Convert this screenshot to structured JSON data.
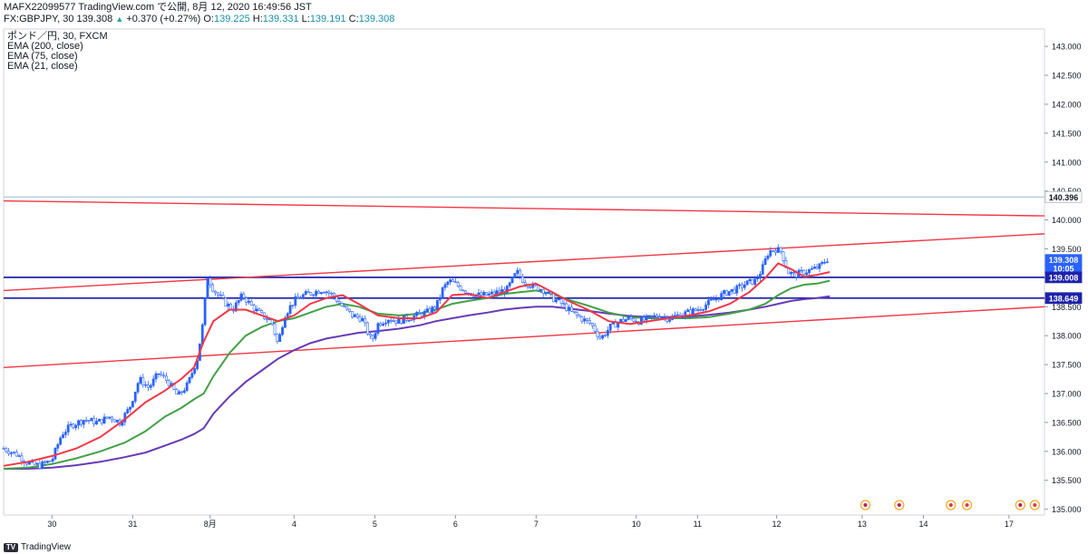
{
  "header": {
    "publish_line": "MAFX22099577 TradingView.com で公開, 8月 12, 2020 16:49:56 JST",
    "symbol": "FX:GBPJPY, 30",
    "last": "139.308",
    "change": "+0.370 (+0.27%)",
    "o_label": "O:",
    "o_val": "139.225",
    "h_label": "H:",
    "h_val": "139.331",
    "l_label": "L:",
    "l_val": "139.191",
    "c_label": "C:",
    "c_val": "139.308"
  },
  "legend": {
    "series_title": "ポンド／円, 30, FXCM",
    "ema200": "EMA (200, close)",
    "ema75": "EMA (75, close)",
    "ema21": "EMA (21, close)"
  },
  "footer": {
    "logo_text": "TV",
    "brand": "TradingView"
  },
  "colors": {
    "up_candle": "#2962ff",
    "down_candle": "#2962ff",
    "ema21": "#f23645",
    "ema75": "#43a047",
    "ema200": "#673ab7",
    "trend_line": "#f23645",
    "hline": "#1e22aa",
    "hline_light": "#90bfd8"
  },
  "chart_data": {
    "type": "candlestick",
    "y_axis": {
      "min": 134.9,
      "max": 143.3,
      "ticks": [
        "143.000",
        "142.500",
        "142.000",
        "141.500",
        "141.000",
        "140.500",
        "140.000",
        "139.500",
        "139.000",
        "138.500",
        "138.000",
        "137.500",
        "137.000",
        "136.500",
        "136.000",
        "135.500",
        "135.000"
      ]
    },
    "x_axis": {
      "labels": [
        {
          "t": "30",
          "x": 30
        },
        {
          "t": "31",
          "x": 80
        },
        {
          "t": "8月",
          "x": 128
        },
        {
          "t": "4",
          "x": 180
        },
        {
          "t": "5",
          "x": 230
        },
        {
          "t": "6",
          "x": 280
        },
        {
          "t": "7",
          "x": 330
        },
        {
          "t": "10",
          "x": 392
        },
        {
          "t": "11",
          "x": 430
        },
        {
          "t": "12",
          "x": 479
        },
        {
          "t": "13",
          "x": 532
        },
        {
          "t": "14",
          "x": 570
        },
        {
          "t": "17",
          "x": 623
        }
      ],
      "range": [
        0,
        645
      ]
    },
    "price_tags": [
      {
        "text": "140.396",
        "value": 140.396,
        "style": "outline"
      },
      {
        "text": "139.308",
        "value": 139.308,
        "style": "blue"
      },
      {
        "text": "10:05",
        "value": 139.16,
        "style": "blue"
      },
      {
        "text": "139.008",
        "value": 139.008,
        "style": "navy"
      },
      {
        "text": "138.649",
        "value": 138.649,
        "style": "navy"
      }
    ],
    "horizontal_lines": [
      {
        "value": 140.396,
        "style": "light"
      },
      {
        "value": 139.008,
        "style": "heavy"
      },
      {
        "value": 138.649,
        "style": "heavy"
      }
    ],
    "trend_lines": [
      {
        "x1": 0,
        "y1": 140.33,
        "x2": 645,
        "y2": 140.07
      },
      {
        "x1": 0,
        "y1": 138.78,
        "x2": 645,
        "y2": 139.76
      },
      {
        "x1": 0,
        "y1": 137.45,
        "x2": 645,
        "y2": 138.5
      }
    ],
    "ema21": [
      [
        0,
        135.75
      ],
      [
        15,
        135.82
      ],
      [
        30,
        135.92
      ],
      [
        45,
        136.05
      ],
      [
        60,
        136.25
      ],
      [
        75,
        136.55
      ],
      [
        88,
        136.85
      ],
      [
        100,
        137.05
      ],
      [
        110,
        137.25
      ],
      [
        118,
        137.45
      ],
      [
        124,
        137.9
      ],
      [
        130,
        138.25
      ],
      [
        140,
        138.45
      ],
      [
        150,
        138.45
      ],
      [
        160,
        138.35
      ],
      [
        170,
        138.25
      ],
      [
        180,
        138.35
      ],
      [
        190,
        138.55
      ],
      [
        200,
        138.65
      ],
      [
        210,
        138.7
      ],
      [
        220,
        138.55
      ],
      [
        232,
        138.35
      ],
      [
        245,
        138.3
      ],
      [
        258,
        138.3
      ],
      [
        268,
        138.4
      ],
      [
        278,
        138.7
      ],
      [
        288,
        138.72
      ],
      [
        300,
        138.65
      ],
      [
        310,
        138.75
      ],
      [
        320,
        138.85
      ],
      [
        330,
        138.9
      ],
      [
        340,
        138.75
      ],
      [
        350,
        138.6
      ],
      [
        362,
        138.45
      ],
      [
        375,
        138.25
      ],
      [
        388,
        138.2
      ],
      [
        400,
        138.25
      ],
      [
        412,
        138.3
      ],
      [
        425,
        138.35
      ],
      [
        437,
        138.42
      ],
      [
        450,
        138.55
      ],
      [
        462,
        138.75
      ],
      [
        472,
        139.0
      ],
      [
        480,
        139.25
      ],
      [
        488,
        139.15
      ],
      [
        496,
        139.02
      ],
      [
        504,
        139.05
      ],
      [
        512,
        139.1
      ]
    ],
    "ema75": [
      [
        0,
        135.7
      ],
      [
        15,
        135.72
      ],
      [
        30,
        135.78
      ],
      [
        45,
        135.88
      ],
      [
        60,
        136.0
      ],
      [
        75,
        136.15
      ],
      [
        88,
        136.35
      ],
      [
        100,
        136.6
      ],
      [
        110,
        136.75
      ],
      [
        118,
        136.9
      ],
      [
        124,
        137.0
      ],
      [
        130,
        137.3
      ],
      [
        140,
        137.7
      ],
      [
        150,
        138.0
      ],
      [
        160,
        138.15
      ],
      [
        170,
        138.25
      ],
      [
        180,
        138.3
      ],
      [
        190,
        138.4
      ],
      [
        200,
        138.5
      ],
      [
        210,
        138.55
      ],
      [
        220,
        138.5
      ],
      [
        232,
        138.38
      ],
      [
        245,
        138.35
      ],
      [
        258,
        138.38
      ],
      [
        268,
        138.45
      ],
      [
        278,
        138.55
      ],
      [
        288,
        138.6
      ],
      [
        300,
        138.65
      ],
      [
        310,
        138.72
      ],
      [
        320,
        138.75
      ],
      [
        330,
        138.78
      ],
      [
        340,
        138.72
      ],
      [
        350,
        138.62
      ],
      [
        362,
        138.52
      ],
      [
        375,
        138.4
      ],
      [
        388,
        138.32
      ],
      [
        400,
        138.3
      ],
      [
        412,
        138.3
      ],
      [
        425,
        138.3
      ],
      [
        437,
        138.32
      ],
      [
        450,
        138.38
      ],
      [
        462,
        138.45
      ],
      [
        472,
        138.55
      ],
      [
        480,
        138.7
      ],
      [
        488,
        138.82
      ],
      [
        496,
        138.88
      ],
      [
        504,
        138.9
      ],
      [
        512,
        138.95
      ]
    ],
    "ema200": [
      [
        0,
        135.7
      ],
      [
        15,
        135.7
      ],
      [
        30,
        135.72
      ],
      [
        45,
        135.76
      ],
      [
        60,
        135.82
      ],
      [
        75,
        135.9
      ],
      [
        88,
        135.98
      ],
      [
        100,
        136.1
      ],
      [
        110,
        136.2
      ],
      [
        118,
        136.3
      ],
      [
        124,
        136.4
      ],
      [
        130,
        136.65
      ],
      [
        140,
        136.95
      ],
      [
        150,
        137.2
      ],
      [
        160,
        137.4
      ],
      [
        170,
        137.6
      ],
      [
        180,
        137.75
      ],
      [
        190,
        137.87
      ],
      [
        200,
        137.95
      ],
      [
        210,
        138.0
      ],
      [
        220,
        138.05
      ],
      [
        232,
        138.08
      ],
      [
        245,
        138.12
      ],
      [
        258,
        138.18
      ],
      [
        268,
        138.25
      ],
      [
        278,
        138.3
      ],
      [
        288,
        138.35
      ],
      [
        300,
        138.4
      ],
      [
        310,
        138.45
      ],
      [
        320,
        138.48
      ],
      [
        330,
        138.5
      ],
      [
        340,
        138.5
      ],
      [
        350,
        138.47
      ],
      [
        362,
        138.43
      ],
      [
        375,
        138.38
      ],
      [
        388,
        138.34
      ],
      [
        400,
        138.32
      ],
      [
        412,
        138.32
      ],
      [
        425,
        138.33
      ],
      [
        437,
        138.36
      ],
      [
        450,
        138.4
      ],
      [
        462,
        138.45
      ],
      [
        472,
        138.5
      ],
      [
        480,
        138.55
      ],
      [
        488,
        138.6
      ],
      [
        496,
        138.63
      ],
      [
        504,
        138.65
      ],
      [
        512,
        138.68
      ]
    ],
    "price_path": [
      [
        0,
        136.05
      ],
      [
        8,
        135.95
      ],
      [
        15,
        135.8
      ],
      [
        22,
        135.75
      ],
      [
        30,
        135.85
      ],
      [
        36,
        136.3
      ],
      [
        42,
        136.45
      ],
      [
        50,
        136.55
      ],
      [
        58,
        136.5
      ],
      [
        66,
        136.6
      ],
      [
        72,
        136.5
      ],
      [
        78,
        136.75
      ],
      [
        84,
        137.25
      ],
      [
        90,
        137.1
      ],
      [
        96,
        137.35
      ],
      [
        102,
        137.2
      ],
      [
        108,
        136.95
      ],
      [
        114,
        137.15
      ],
      [
        120,
        137.6
      ],
      [
        124,
        138.3
      ],
      [
        126,
        139.05
      ],
      [
        130,
        138.8
      ],
      [
        136,
        138.6
      ],
      [
        142,
        138.45
      ],
      [
        148,
        138.7
      ],
      [
        154,
        138.5
      ],
      [
        160,
        138.35
      ],
      [
        166,
        138.25
      ],
      [
        170,
        137.85
      ],
      [
        174,
        138.35
      ],
      [
        180,
        138.6
      ],
      [
        186,
        138.7
      ],
      [
        192,
        138.75
      ],
      [
        198,
        138.8
      ],
      [
        204,
        138.7
      ],
      [
        210,
        138.5
      ],
      [
        216,
        138.35
      ],
      [
        222,
        138.3
      ],
      [
        228,
        137.9
      ],
      [
        232,
        138.2
      ],
      [
        238,
        138.3
      ],
      [
        244,
        138.25
      ],
      [
        250,
        138.3
      ],
      [
        256,
        138.35
      ],
      [
        262,
        138.4
      ],
      [
        268,
        138.5
      ],
      [
        272,
        138.8
      ],
      [
        276,
        138.95
      ],
      [
        282,
        138.85
      ],
      [
        288,
        138.75
      ],
      [
        294,
        138.7
      ],
      [
        300,
        138.7
      ],
      [
        306,
        138.75
      ],
      [
        312,
        138.8
      ],
      [
        318,
        139.1
      ],
      [
        322,
        138.95
      ],
      [
        328,
        138.85
      ],
      [
        334,
        138.8
      ],
      [
        340,
        138.65
      ],
      [
        346,
        138.55
      ],
      [
        352,
        138.4
      ],
      [
        358,
        138.3
      ],
      [
        364,
        138.2
      ],
      [
        370,
        137.95
      ],
      [
        376,
        138.15
      ],
      [
        382,
        138.25
      ],
      [
        388,
        138.3
      ],
      [
        394,
        138.25
      ],
      [
        400,
        138.3
      ],
      [
        406,
        138.35
      ],
      [
        412,
        138.3
      ],
      [
        418,
        138.35
      ],
      [
        424,
        138.4
      ],
      [
        430,
        138.45
      ],
      [
        436,
        138.55
      ],
      [
        442,
        138.65
      ],
      [
        448,
        138.75
      ],
      [
        454,
        138.8
      ],
      [
        460,
        138.9
      ],
      [
        466,
        138.95
      ],
      [
        470,
        139.15
      ],
      [
        474,
        139.45
      ],
      [
        478,
        139.5
      ],
      [
        482,
        139.45
      ],
      [
        486,
        139.1
      ],
      [
        490,
        139.05
      ],
      [
        496,
        139.1
      ],
      [
        502,
        139.15
      ],
      [
        506,
        139.2
      ],
      [
        510,
        139.32
      ]
    ]
  }
}
